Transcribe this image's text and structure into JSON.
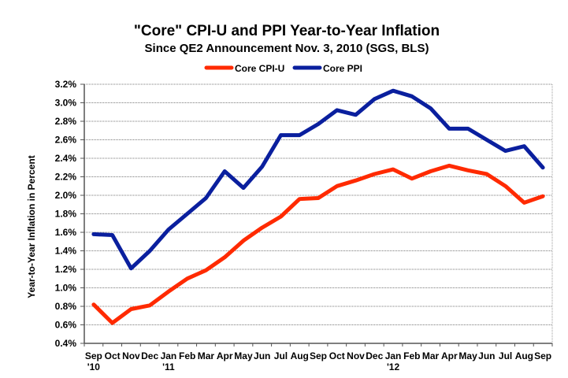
{
  "chart_data": {
    "type": "line",
    "title": "\"Core\" CPI-U and PPI Year-to-Year Inflation",
    "subtitle": "Since QE2 Announcement Nov. 3, 2010 (SGS, BLS)",
    "xlabel": "",
    "ylabel": "Year-to-Year Inflation in Percent",
    "ylim": [
      0.4,
      3.2
    ],
    "y_ticks": [
      0.4,
      0.6,
      0.8,
      1.0,
      1.2,
      1.4,
      1.6,
      1.8,
      2.0,
      2.2,
      2.4,
      2.6,
      2.8,
      3.0,
      3.2
    ],
    "y_tick_labels": [
      "0.4%",
      "0.6%",
      "0.8%",
      "1.0%",
      "1.2%",
      "1.4%",
      "1.6%",
      "1.8%",
      "2.0%",
      "2.2%",
      "2.4%",
      "2.6%",
      "2.8%",
      "3.0%",
      "3.2%"
    ],
    "grid": true,
    "legend_position": "top-center",
    "categories": [
      "Sep",
      "Oct",
      "Nov",
      "Dec",
      "Jan",
      "Feb",
      "Mar",
      "Apr",
      "May",
      "Jun",
      "Jul",
      "Aug",
      "Sep",
      "Oct",
      "Nov",
      "Dec",
      "Jan",
      "Feb",
      "Mar",
      "Apr",
      "May",
      "Jun",
      "Jul",
      "Aug",
      "Sep"
    ],
    "category_sublabels": [
      "'10",
      "",
      "",
      "",
      "'11",
      "",
      "",
      "",
      "",
      "",
      "",
      "",
      "",
      "",
      "",
      "",
      "'12",
      "",
      "",
      "",
      "",
      "",
      "",
      "",
      ""
    ],
    "series": [
      {
        "name": "Core CPI-U",
        "color": "#ff2a00",
        "values": [
          0.82,
          0.62,
          0.77,
          0.81,
          0.96,
          1.1,
          1.19,
          1.33,
          1.51,
          1.65,
          1.77,
          1.96,
          1.97,
          2.1,
          2.16,
          2.23,
          2.28,
          2.18,
          2.26,
          2.32,
          2.27,
          2.23,
          2.1,
          1.92,
          1.99
        ]
      },
      {
        "name": "Core PPI",
        "color": "#0a1f9e",
        "values": [
          1.58,
          1.57,
          1.21,
          1.4,
          1.63,
          1.8,
          1.97,
          2.26,
          2.08,
          2.31,
          2.65,
          2.65,
          2.77,
          2.92,
          2.87,
          3.04,
          3.13,
          3.07,
          2.94,
          2.72,
          2.72,
          2.6,
          2.48,
          2.53,
          2.3
        ]
      }
    ]
  }
}
